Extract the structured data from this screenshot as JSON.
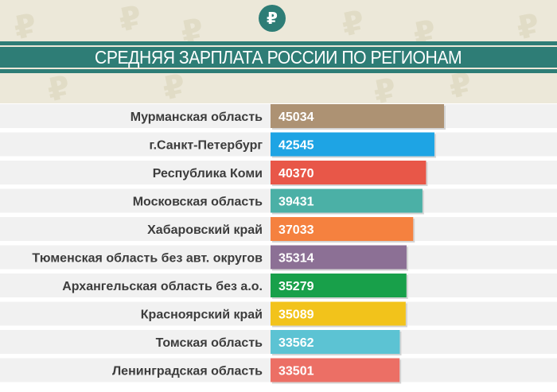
{
  "header": {
    "title": "СРЕДНЯЯ ЗАРПЛАТА РОССИИ ПО РЕГИОНАМ",
    "logo_icon": "ruble-icon",
    "accent_color": "#2e7d76",
    "background_color": "#ece8d9"
  },
  "chart_data": {
    "type": "bar",
    "orientation": "horizontal",
    "title": "СРЕДНЯЯ ЗАРПЛАТА РОССИИ ПО РЕГИОНАМ",
    "xlabel": "",
    "ylabel": "",
    "xlim": [
      0,
      45034
    ],
    "grid": false,
    "legend": "none",
    "categories": [
      "Мурманская область",
      "г.Санкт-Петербург",
      "Республика Коми",
      "Московская область",
      "Хабаровский край",
      "Тюменская область без авт. округов",
      "Архангельская область без а.о.",
      "Красноярский край",
      "Томская область",
      "Ленинградская область"
    ],
    "values": [
      45034,
      42545,
      40370,
      39431,
      37033,
      35314,
      35279,
      35089,
      33562,
      33501
    ],
    "colors": [
      "#ad9273",
      "#1ea4e4",
      "#e85748",
      "#4bb0a6",
      "#f5813f",
      "#8c7095",
      "#18a04a",
      "#f2c31b",
      "#5cc3d3",
      "#ec6f65"
    ]
  }
}
